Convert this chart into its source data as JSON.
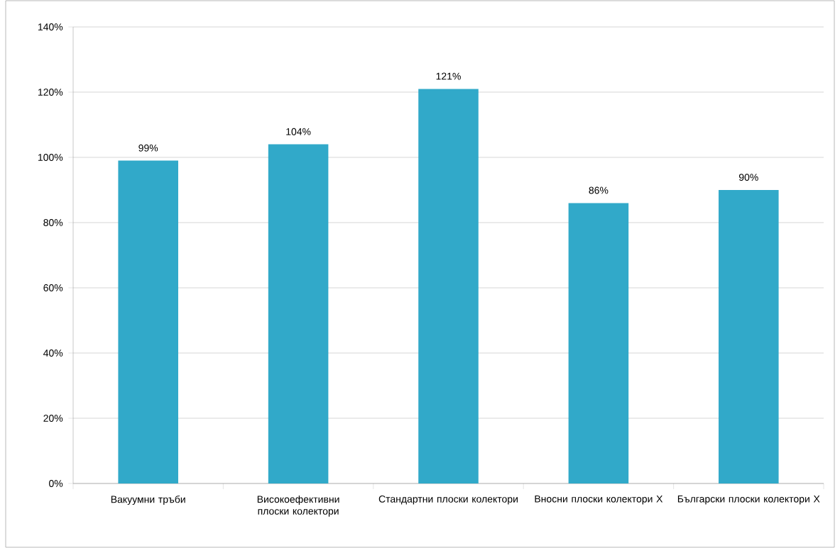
{
  "chart_data": {
    "type": "bar",
    "categories": [
      "Вакуумни тръби",
      "Високоефективни плоски колектори",
      "Стандартни плоски колектори",
      "Вносни плоски колектори X",
      "Български плоски колектори X"
    ],
    "values": [
      99,
      104,
      121,
      86,
      90
    ],
    "value_labels": [
      "99%",
      "104%",
      "121%",
      "86%",
      "90%"
    ],
    "color": "#31a9c9",
    "ylim": [
      0,
      140
    ],
    "yticks": [
      {
        "value": 0,
        "label": "0%"
      },
      {
        "value": 20,
        "label": "20%"
      },
      {
        "value": 40,
        "label": "40%"
      },
      {
        "value": 60,
        "label": "60%"
      },
      {
        "value": 80,
        "label": "80%"
      },
      {
        "value": 100,
        "label": "100%"
      },
      {
        "value": 120,
        "label": "120%"
      },
      {
        "value": 140,
        "label": "140%"
      }
    ],
    "grid": "y"
  }
}
